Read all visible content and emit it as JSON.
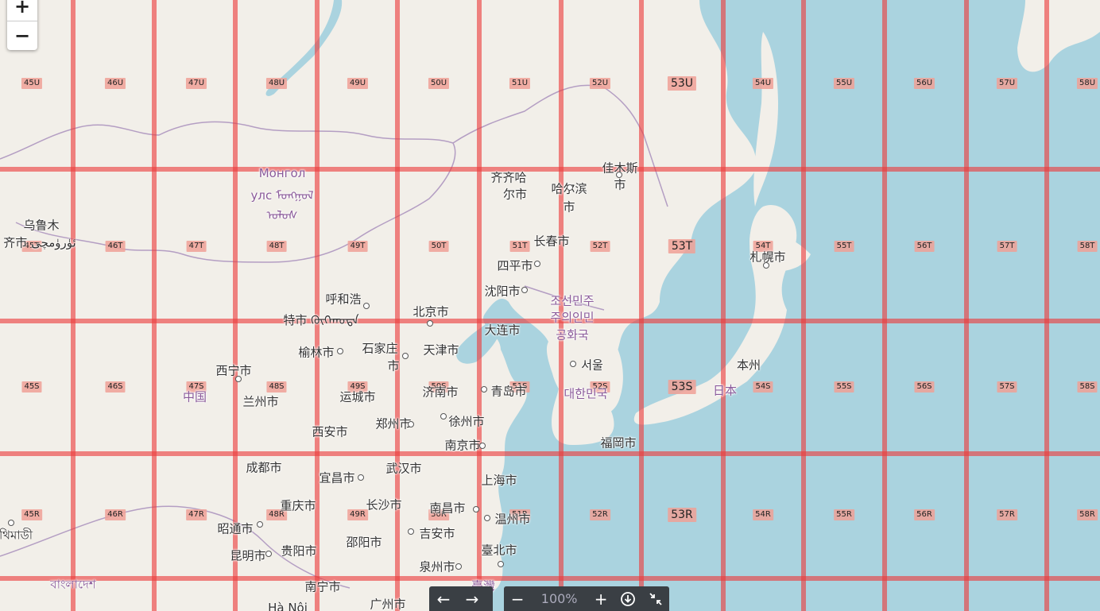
{
  "map": {
    "zoom_in_label": "+",
    "zoom_out_label": "−",
    "grid_color": "#eb3c3c",
    "water_color": "#aad3df",
    "land_color": "#f2efe9",
    "zones": [
      {
        "id": "z45U",
        "label": "45U",
        "big": false
      },
      {
        "id": "z46U",
        "label": "46U",
        "big": false
      },
      {
        "id": "z47U",
        "label": "47U",
        "big": false
      },
      {
        "id": "z48U",
        "label": "48U",
        "big": false
      },
      {
        "id": "z49U",
        "label": "49U",
        "big": false
      },
      {
        "id": "z50U",
        "label": "50U",
        "big": false
      },
      {
        "id": "z51U",
        "label": "51U",
        "big": false
      },
      {
        "id": "z52U",
        "label": "52U",
        "big": false
      },
      {
        "id": "z53U",
        "label": "53U",
        "big": true
      },
      {
        "id": "z54U",
        "label": "54U",
        "big": false
      },
      {
        "id": "z55U",
        "label": "55U",
        "big": false
      },
      {
        "id": "z56U",
        "label": "56U",
        "big": false
      },
      {
        "id": "z57U",
        "label": "57U",
        "big": false
      },
      {
        "id": "z58U",
        "label": "58U",
        "big": false
      },
      {
        "id": "z45T",
        "label": "45T",
        "big": false
      },
      {
        "id": "z46T",
        "label": "46T",
        "big": false
      },
      {
        "id": "z47T",
        "label": "47T",
        "big": false
      },
      {
        "id": "z48T",
        "label": "48T",
        "big": false
      },
      {
        "id": "z49T",
        "label": "49T",
        "big": false
      },
      {
        "id": "z50T",
        "label": "50T",
        "big": false
      },
      {
        "id": "z51T",
        "label": "51T",
        "big": false
      },
      {
        "id": "z52T",
        "label": "52T",
        "big": false
      },
      {
        "id": "z53T",
        "label": "53T",
        "big": true
      },
      {
        "id": "z54T",
        "label": "54T",
        "big": false
      },
      {
        "id": "z55T",
        "label": "55T",
        "big": false
      },
      {
        "id": "z56T",
        "label": "56T",
        "big": false
      },
      {
        "id": "z57T",
        "label": "57T",
        "big": false
      },
      {
        "id": "z58T",
        "label": "58T",
        "big": false
      },
      {
        "id": "z45S",
        "label": "45S",
        "big": false
      },
      {
        "id": "z46S",
        "label": "46S",
        "big": false
      },
      {
        "id": "z47S",
        "label": "47S",
        "big": false
      },
      {
        "id": "z48S",
        "label": "48S",
        "big": false
      },
      {
        "id": "z49S",
        "label": "49S",
        "big": false
      },
      {
        "id": "z50S",
        "label": "50S",
        "big": false
      },
      {
        "id": "z51S",
        "label": "51S",
        "big": false
      },
      {
        "id": "z52S",
        "label": "52S",
        "big": false
      },
      {
        "id": "z53S",
        "label": "53S",
        "big": true
      },
      {
        "id": "z54S",
        "label": "54S",
        "big": false
      },
      {
        "id": "z55S",
        "label": "55S",
        "big": false
      },
      {
        "id": "z56S",
        "label": "56S",
        "big": false
      },
      {
        "id": "z57S",
        "label": "57S",
        "big": false
      },
      {
        "id": "z58S",
        "label": "58S",
        "big": false
      },
      {
        "id": "z45R",
        "label": "45R",
        "big": false
      },
      {
        "id": "z46R",
        "label": "46R",
        "big": false
      },
      {
        "id": "z47R",
        "label": "47R",
        "big": false
      },
      {
        "id": "z48R",
        "label": "48R",
        "big": false
      },
      {
        "id": "z49R",
        "label": "49R",
        "big": false
      },
      {
        "id": "z50R",
        "label": "50R",
        "big": false
      },
      {
        "id": "z51R",
        "label": "51R",
        "big": false
      },
      {
        "id": "z52R",
        "label": "52R",
        "big": false
      },
      {
        "id": "z53R",
        "label": "53R",
        "big": true
      },
      {
        "id": "z54R",
        "label": "54R",
        "big": false
      },
      {
        "id": "z55R",
        "label": "55R",
        "big": false
      },
      {
        "id": "z56R",
        "label": "56R",
        "big": false
      },
      {
        "id": "z57R",
        "label": "57R",
        "big": false
      },
      {
        "id": "z58R",
        "label": "58R",
        "big": false
      }
    ],
    "places": [
      {
        "id": "p_mongol1",
        "label": "Монгол",
        "country": true
      },
      {
        "id": "p_mongol2",
        "label": "улс ᠮᠣᠩᠭᠣᠯ",
        "country": true
      },
      {
        "id": "p_mongol3",
        "label": "ᠤᠯᠤᠰ",
        "country": true
      },
      {
        "id": "p_urumqi1",
        "label": "乌鲁木",
        "country": false
      },
      {
        "id": "p_urumqi2",
        "label": "齐市 ئۈرۈمچى",
        "country": false
      },
      {
        "id": "p_qiqihar1",
        "label": "齐齐哈",
        "country": false
      },
      {
        "id": "p_qiqihar2",
        "label": "尔市",
        "country": false
      },
      {
        "id": "p_harbin1",
        "label": "哈尔滨",
        "country": false
      },
      {
        "id": "p_harbin2",
        "label": "市",
        "country": false
      },
      {
        "id": "p_jiamusi1",
        "label": "佳木斯",
        "country": false
      },
      {
        "id": "p_jiamusi2",
        "label": "市",
        "country": false
      },
      {
        "id": "p_changchun",
        "label": "长春市",
        "country": false
      },
      {
        "id": "p_siping",
        "label": "四平市",
        "country": false
      },
      {
        "id": "p_shenyang",
        "label": "沈阳市",
        "country": false
      },
      {
        "id": "p_sapporo",
        "label": "札幌市",
        "country": false
      },
      {
        "id": "p_hohhot1",
        "label": "呼和浩",
        "country": false
      },
      {
        "id": "p_hohhot2",
        "label": "特市 ᠬᠥᠬᠡᠬᠣᠲᠠ",
        "country": false
      },
      {
        "id": "p_beijing",
        "label": "北京市",
        "country": false
      },
      {
        "id": "p_dprk1",
        "label": "조선민주",
        "country": true
      },
      {
        "id": "p_dprk2",
        "label": "주의인민",
        "country": true
      },
      {
        "id": "p_dprk3",
        "label": "공화국",
        "country": true
      },
      {
        "id": "p_dalian",
        "label": "大连市",
        "country": false
      },
      {
        "id": "p_yulin",
        "label": "榆林市",
        "country": false
      },
      {
        "id": "p_sjz1",
        "label": "石家庄",
        "country": false
      },
      {
        "id": "p_sjz2",
        "label": "市",
        "country": false
      },
      {
        "id": "p_tianjin",
        "label": "天津市",
        "country": false
      },
      {
        "id": "p_seoul",
        "label": "서울",
        "country": false
      },
      {
        "id": "p_honshu",
        "label": "本州",
        "country": false
      },
      {
        "id": "p_xining",
        "label": "西宁市",
        "country": false
      },
      {
        "id": "p_china",
        "label": "中国",
        "country": true
      },
      {
        "id": "p_lanzhou",
        "label": "兰州市",
        "country": false
      },
      {
        "id": "p_yuncheng",
        "label": "运城市",
        "country": false
      },
      {
        "id": "p_jinan",
        "label": "济南市",
        "country": false
      },
      {
        "id": "p_qingdao",
        "label": "青岛市",
        "country": false
      },
      {
        "id": "p_rok",
        "label": "대한민국",
        "country": true
      },
      {
        "id": "p_japan",
        "label": "日本",
        "country": true
      },
      {
        "id": "p_xian",
        "label": "西安市",
        "country": false
      },
      {
        "id": "p_zhengzhou",
        "label": "郑州市",
        "country": false
      },
      {
        "id": "p_xuzhou",
        "label": "徐州市",
        "country": false
      },
      {
        "id": "p_nanjing",
        "label": "南京市",
        "country": false
      },
      {
        "id": "p_fukuoka",
        "label": "福岡市",
        "country": false
      },
      {
        "id": "p_chengdu",
        "label": "成都市",
        "country": false
      },
      {
        "id": "p_wuhan",
        "label": "武汉市",
        "country": false
      },
      {
        "id": "p_yichang",
        "label": "宜昌市",
        "country": false
      },
      {
        "id": "p_shanghai",
        "label": "上海市",
        "country": false
      },
      {
        "id": "p_chongqing",
        "label": "重庆市",
        "country": false
      },
      {
        "id": "p_changsha",
        "label": "长沙市",
        "country": false
      },
      {
        "id": "p_nanchang",
        "label": "南昌市",
        "country": false
      },
      {
        "id": "p_wenzhou",
        "label": "温州市",
        "country": false
      },
      {
        "id": "p_zhaotong",
        "label": "昭通市",
        "country": false
      },
      {
        "id": "p_jian",
        "label": "吉安市",
        "country": false
      },
      {
        "id": "p_thimphu",
        "label": "থিমাডী",
        "country": false
      },
      {
        "id": "p_kunming",
        "label": "昆明市",
        "country": false
      },
      {
        "id": "p_guiyang",
        "label": "贵阳市",
        "country": false
      },
      {
        "id": "p_shaoyang",
        "label": "邵阳市",
        "country": false
      },
      {
        "id": "p_taipei",
        "label": "臺北市",
        "country": false
      },
      {
        "id": "p_quanzhou",
        "label": "泉州市",
        "country": false
      },
      {
        "id": "p_bangladesh",
        "label": "বাংলাদেশ",
        "country": true
      },
      {
        "id": "p_nanning",
        "label": "南宁市",
        "country": false
      },
      {
        "id": "p_guangzhou",
        "label": "广州市",
        "country": false
      },
      {
        "id": "p_hanoi",
        "label": "Hà Nội",
        "country": false
      },
      {
        "id": "p_taiwan_frag",
        "label": "臺灣",
        "country": true
      }
    ]
  },
  "toolbar": {
    "back_icon": "arrow-left-icon",
    "forward_icon": "arrow-right-icon",
    "zoom_out_label": "−",
    "zoom_level": "100%",
    "zoom_in_label": "+",
    "download_icon": "download-icon",
    "collapse_icon": "collapse-icon"
  }
}
